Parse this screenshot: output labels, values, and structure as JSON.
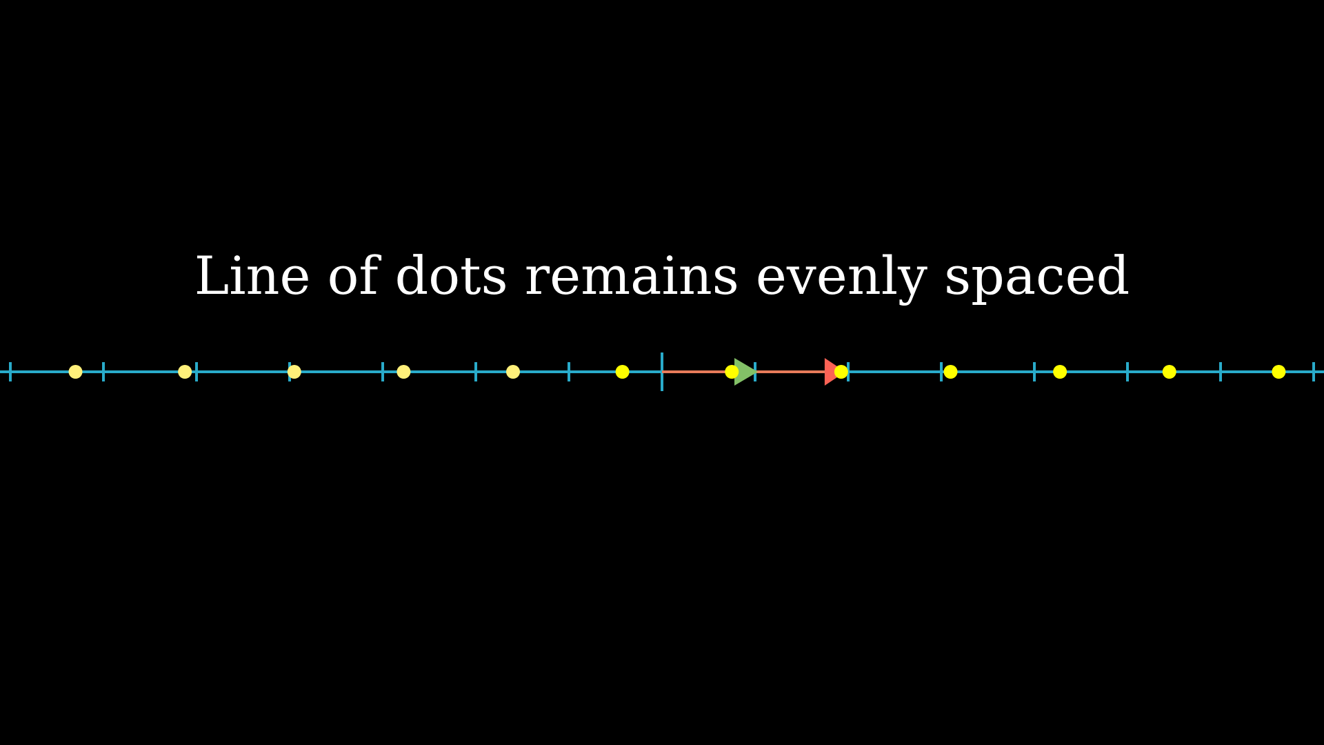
{
  "caption": "Line of dots remains evenly spaced",
  "colors": {
    "background": "#000000",
    "caption": "#ffffff",
    "number_line": "#29ABCA",
    "dots": "#FFFF00",
    "dots_faded": "#FFF07A",
    "vector_red": "#FC6255",
    "vector_orange": "#E87B5A",
    "vector_green": "#83C167"
  },
  "number_line": {
    "x_min": -7,
    "x_max": 7,
    "tick_step": 1,
    "origin_tick": 0
  },
  "dots": [
    -6.3,
    -5.125,
    -3.95,
    -2.775,
    -1.6,
    -0.425,
    0.75,
    1.925,
    3.1,
    4.275,
    5.45,
    6.625
  ],
  "vectors": [
    {
      "name": "red-vector",
      "start": 0,
      "end": 1.925,
      "color_key": "vector_red"
    },
    {
      "name": "green-vector",
      "start": 0.75,
      "end": 1.0,
      "color_key": "vector_green"
    }
  ]
}
